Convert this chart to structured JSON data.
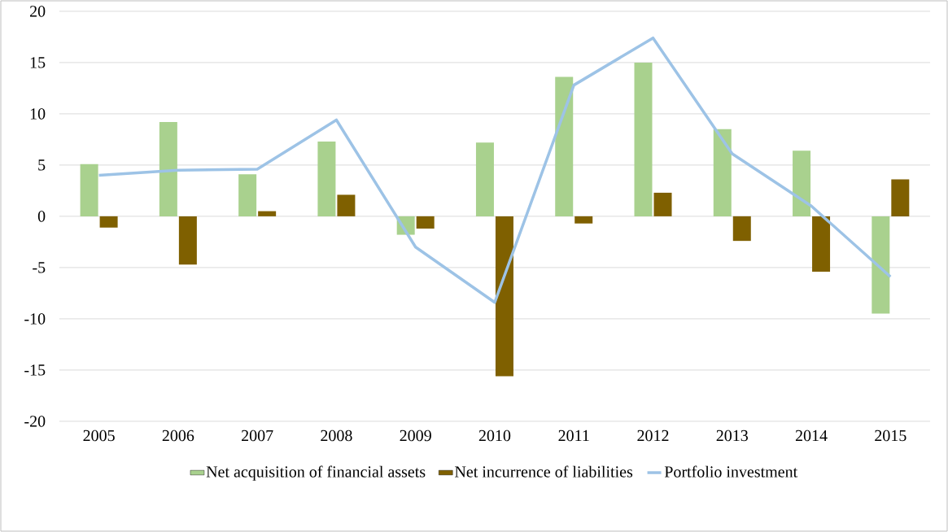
{
  "chart_data": {
    "type": "bar",
    "categories": [
      "2005",
      "2006",
      "2007",
      "2008",
      "2009",
      "2010",
      "2011",
      "2012",
      "2013",
      "2014",
      "2015"
    ],
    "series": [
      {
        "name": "Net acquisition of financial assets",
        "color": "#a9d18e",
        "values": [
          5.1,
          9.2,
          4.1,
          7.3,
          -1.8,
          7.2,
          13.6,
          15.0,
          8.5,
          6.4,
          -9.5
        ]
      },
      {
        "name": "Net incurrence of liabilities",
        "color": "#7f6000",
        "values": [
          -1.1,
          -4.7,
          0.5,
          2.1,
          -1.2,
          -15.6,
          -0.7,
          2.3,
          -2.4,
          -5.4,
          3.6
        ]
      },
      {
        "name": "Portfolio investment",
        "type": "line",
        "color": "#9dc3e6",
        "values": [
          4.0,
          4.5,
          4.6,
          9.4,
          -3.0,
          -8.4,
          12.8,
          17.4,
          6.1,
          1.0,
          -5.9
        ]
      }
    ],
    "ylim": [
      -20,
      20
    ],
    "yticks": [
      -20,
      -15,
      -10,
      -5,
      0,
      5,
      10,
      15,
      20
    ],
    "grid": "y",
    "legend": "bottom",
    "marker": "none"
  }
}
